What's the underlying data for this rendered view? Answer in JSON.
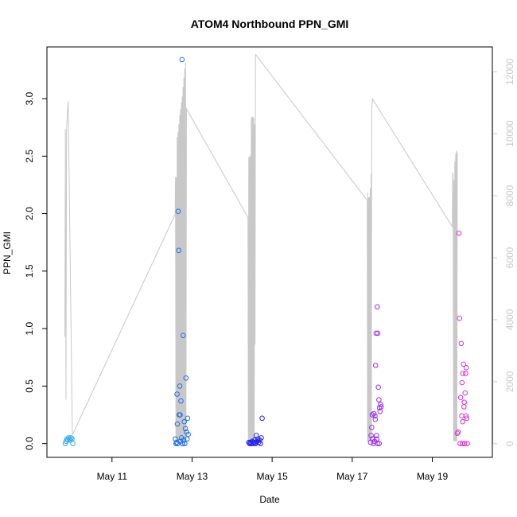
{
  "chart_data": {
    "type": "scatter",
    "title": "ATOM4 Northbound PPN_GMI",
    "xlabel": "Date",
    "ylabel": "PPN_GMI",
    "xlim": [
      "2023-05-09 09:00",
      "2023-05-20 12:00"
    ],
    "ylim": [
      -0.12,
      3.45
    ],
    "x_ticks": [
      {
        "date": "2023-05-11",
        "label": "May 11"
      },
      {
        "date": "2023-05-13",
        "label": "May 13"
      },
      {
        "date": "2023-05-15",
        "label": "May 15"
      },
      {
        "date": "2023-05-17",
        "label": "May 17"
      },
      {
        "date": "2023-05-19",
        "label": "May 19"
      }
    ],
    "y_ticks": [
      "0.0",
      "0.5",
      "1.0",
      "1.5",
      "2.0",
      "2.5",
      "3.0"
    ],
    "y_tick_values": [
      0.0,
      0.5,
      1.0,
      1.5,
      2.0,
      2.5,
      3.0
    ],
    "y2_ticks": [
      "0",
      "2000",
      "4000",
      "6000",
      "8000",
      "10000",
      "12000"
    ],
    "y2_tick_values": [
      0,
      2000,
      4000,
      6000,
      8000,
      10000,
      12000
    ],
    "y2_lim": [
      -440,
      12800
    ],
    "point_series": [
      {
        "color": "#35aaf0",
        "points": [
          [
            "2023-05-09 20:00",
            0.0
          ],
          [
            "2023-05-09 20:30",
            0.02
          ],
          [
            "2023-05-09 21:00",
            0.04
          ],
          [
            "2023-05-09 21:30",
            0.03
          ],
          [
            "2023-05-09 22:00",
            0.05
          ],
          [
            "2023-05-09 22:30",
            0.04
          ],
          [
            "2023-05-09 23:00",
            0.03
          ],
          [
            "2023-05-09 23:30",
            0.05
          ],
          [
            "2023-05-10 00:00",
            0.04
          ],
          [
            "2023-05-10 00:30",
            0.0
          ]
        ]
      },
      {
        "color": "#1e6ef0",
        "points": [
          [
            "2023-05-12 14:00",
            0.04
          ],
          [
            "2023-05-12 14:40",
            0.01
          ],
          [
            "2023-05-12 15:00",
            0.43
          ],
          [
            "2023-05-12 15:20",
            0.0
          ],
          [
            "2023-05-12 15:40",
            2.02
          ],
          [
            "2023-05-12 16:00",
            1.68
          ],
          [
            "2023-05-12 16:20",
            0.25
          ],
          [
            "2023-05-12 16:40",
            0.5
          ],
          [
            "2023-05-12 17:00",
            0.02
          ],
          [
            "2023-05-12 17:20",
            0.37
          ],
          [
            "2023-05-12 17:40",
            0.05
          ],
          [
            "2023-05-12 18:00",
            3.34
          ],
          [
            "2023-05-12 18:20",
            0.0
          ],
          [
            "2023-05-12 18:40",
            0.94
          ],
          [
            "2023-05-12 19:00",
            0.03
          ],
          [
            "2023-05-12 19:20",
            0.19
          ],
          [
            "2023-05-12 19:40",
            0.0
          ],
          [
            "2023-05-12 20:00",
            0.13
          ],
          [
            "2023-05-12 20:20",
            0.57
          ],
          [
            "2023-05-12 20:40",
            0.1
          ],
          [
            "2023-05-12 21:00",
            0.04
          ],
          [
            "2023-05-12 21:20",
            0.22
          ],
          [
            "2023-05-12 21:40",
            0.08
          ],
          [
            "2023-05-12 15:10",
            0.17
          ],
          [
            "2023-05-12 16:50",
            0.25
          ],
          [
            "2023-05-12 18:10",
            0.0
          ],
          [
            "2023-05-12 14:20",
            0.0
          ]
        ]
      },
      {
        "color": "#2020f0",
        "points": [
          [
            "2023-05-14 10:00",
            0.01
          ],
          [
            "2023-05-14 10:30",
            0.0
          ],
          [
            "2023-05-14 11:00",
            0.01
          ],
          [
            "2023-05-14 11:30",
            0.0
          ],
          [
            "2023-05-14 12:00",
            0.02
          ],
          [
            "2023-05-14 12:30",
            0.0
          ],
          [
            "2023-05-14 13:00",
            0.01
          ],
          [
            "2023-05-14 13:30",
            0.03
          ],
          [
            "2023-05-14 14:00",
            0.0
          ],
          [
            "2023-05-14 14:30",
            0.07
          ],
          [
            "2023-05-14 15:00",
            0.02
          ],
          [
            "2023-05-14 15:30",
            0.04
          ],
          [
            "2023-05-14 16:00",
            0.01
          ],
          [
            "2023-05-14 16:30",
            0.03
          ],
          [
            "2023-05-14 17:00",
            0.0
          ],
          [
            "2023-05-14 17:30",
            0.05
          ],
          [
            "2023-05-14 18:00",
            0.22
          ],
          [
            "2023-05-14 14:10",
            0.01
          ]
        ]
      },
      {
        "color": "#9a2cf0",
        "points": [
          [
            "2023-05-17 11:00",
            0.01
          ],
          [
            "2023-05-17 11:20",
            0.07
          ],
          [
            "2023-05-17 11:40",
            0.14
          ],
          [
            "2023-05-17 12:00",
            0.25
          ],
          [
            "2023-05-17 12:20",
            0.04
          ],
          [
            "2023-05-17 12:40",
            0.0
          ],
          [
            "2023-05-17 13:00",
            0.26
          ],
          [
            "2023-05-17 13:20",
            0.02
          ],
          [
            "2023-05-17 13:40",
            0.24
          ],
          [
            "2023-05-17 14:00",
            0.68
          ],
          [
            "2023-05-17 14:20",
            0.96
          ],
          [
            "2023-05-17 14:40",
            0.04
          ],
          [
            "2023-05-17 15:00",
            1.19
          ],
          [
            "2023-05-17 15:20",
            0.96
          ],
          [
            "2023-05-17 15:40",
            0.49
          ],
          [
            "2023-05-17 16:00",
            0.38
          ],
          [
            "2023-05-17 16:20",
            0.31
          ],
          [
            "2023-05-17 16:40",
            0.28
          ],
          [
            "2023-05-17 17:00",
            0.34
          ],
          [
            "2023-05-17 17:20",
            0.32
          ],
          [
            "2023-05-17 12:10",
            0.04
          ],
          [
            "2023-05-17 13:50",
            0.21
          ],
          [
            "2023-05-17 14:30",
            0.07
          ],
          [
            "2023-05-17 15:10",
            0.0
          ],
          [
            "2023-05-17 16:10",
            0.0
          ]
        ]
      },
      {
        "color": "#e030d8",
        "points": [
          [
            "2023-05-19 15:00",
            0.09
          ],
          [
            "2023-05-19 15:30",
            0.1
          ],
          [
            "2023-05-19 16:00",
            1.83
          ],
          [
            "2023-05-19 16:20",
            1.09
          ],
          [
            "2023-05-19 16:40",
            0.0
          ],
          [
            "2023-05-19 17:00",
            0.4
          ],
          [
            "2023-05-19 17:20",
            0.87
          ],
          [
            "2023-05-19 17:40",
            0.24
          ],
          [
            "2023-05-19 18:00",
            0.0
          ],
          [
            "2023-05-19 18:20",
            0.61
          ],
          [
            "2023-05-19 18:40",
            0.69
          ],
          [
            "2023-05-19 19:00",
            0.32
          ],
          [
            "2023-05-19 19:20",
            0.0
          ],
          [
            "2023-05-19 19:40",
            0.44
          ],
          [
            "2023-05-19 20:00",
            0.61
          ],
          [
            "2023-05-19 20:20",
            0.66
          ],
          [
            "2023-05-19 20:40",
            0.22
          ],
          [
            "2023-05-19 21:00",
            0.0
          ],
          [
            "2023-05-19 19:10",
            0.36
          ],
          [
            "2023-05-19 18:10",
            0.19
          ],
          [
            "2023-05-19 17:50",
            0.53
          ],
          [
            "2023-05-19 20:10",
            0.24
          ]
        ]
      }
    ],
    "secondary_series": {
      "color": "#c8c8c8",
      "axis": "right",
      "points": [
        [
          "2023-05-09 19:45",
          3450
        ],
        [
          "2023-05-09 20:05",
          10150
        ],
        [
          "2023-05-09 20:25",
          1420
        ],
        [
          "2023-05-09 20:45",
          10000
        ],
        [
          "2023-05-09 21:15",
          10700
        ],
        [
          "2023-05-09 21:45",
          11050
        ],
        [
          "2023-05-10 00:15",
          280
        ],
        [
          "2023-05-12 13:50",
          7400
        ],
        [
          "2023-05-12 14:05",
          8600
        ],
        [
          "2023-05-12 14:20",
          80
        ],
        [
          "2023-05-12 14:35",
          8600
        ],
        [
          "2023-05-12 14:50",
          80
        ],
        [
          "2023-05-12 15:05",
          9900
        ],
        [
          "2023-05-12 15:20",
          80
        ],
        [
          "2023-05-12 15:35",
          10050
        ],
        [
          "2023-05-12 15:50",
          80
        ],
        [
          "2023-05-12 16:05",
          10300
        ],
        [
          "2023-05-12 16:20",
          80
        ],
        [
          "2023-05-12 16:35",
          10600
        ],
        [
          "2023-05-12 16:50",
          80
        ],
        [
          "2023-05-12 17:05",
          10800
        ],
        [
          "2023-05-12 17:20",
          80
        ],
        [
          "2023-05-12 17:35",
          11000
        ],
        [
          "2023-05-12 17:50",
          80
        ],
        [
          "2023-05-12 18:05",
          11200
        ],
        [
          "2023-05-12 18:20",
          80
        ],
        [
          "2023-05-12 18:35",
          11500
        ],
        [
          "2023-05-12 18:50",
          80
        ],
        [
          "2023-05-12 19:05",
          11800
        ],
        [
          "2023-05-12 19:20",
          80
        ],
        [
          "2023-05-12 19:35",
          12100
        ],
        [
          "2023-05-12 19:50",
          80
        ],
        [
          "2023-05-12 20:05",
          12300
        ],
        [
          "2023-05-12 20:20",
          80
        ],
        [
          "2023-05-12 20:40",
          10800
        ],
        [
          "2023-05-14 09:30",
          7300
        ],
        [
          "2023-05-14 09:45",
          80
        ],
        [
          "2023-05-14 10:00",
          9250
        ],
        [
          "2023-05-14 10:15",
          80
        ],
        [
          "2023-05-14 10:30",
          9250
        ],
        [
          "2023-05-14 10:45",
          80
        ],
        [
          "2023-05-14 11:00",
          9300
        ],
        [
          "2023-05-14 11:15",
          80
        ],
        [
          "2023-05-14 11:30",
          10500
        ],
        [
          "2023-05-14 11:45",
          80
        ],
        [
          "2023-05-14 12:00",
          10550
        ],
        [
          "2023-05-14 12:15",
          80
        ],
        [
          "2023-05-14 12:30",
          10550
        ],
        [
          "2023-05-14 12:45",
          80
        ],
        [
          "2023-05-14 13:00",
          10500
        ],
        [
          "2023-05-14 13:15",
          80
        ],
        [
          "2023-05-14 13:30",
          10300
        ],
        [
          "2023-05-14 13:45",
          3200
        ],
        [
          "2023-05-14 14:00",
          12400
        ],
        [
          "2023-05-14 14:10",
          12550
        ],
        [
          "2023-05-17 09:00",
          7850
        ],
        [
          "2023-05-17 09:10",
          80
        ],
        [
          "2023-05-17 09:20",
          8100
        ],
        [
          "2023-05-17 09:35",
          80
        ],
        [
          "2023-05-17 09:50",
          7950
        ],
        [
          "2023-05-17 10:05",
          80
        ],
        [
          "2023-05-17 10:20",
          7950
        ],
        [
          "2023-05-17 10:35",
          80
        ],
        [
          "2023-05-17 10:50",
          8250
        ],
        [
          "2023-05-17 11:05",
          80
        ],
        [
          "2023-05-17 11:20",
          8700
        ],
        [
          "2023-05-17 11:30",
          80
        ],
        [
          "2023-05-17 11:40",
          10800
        ],
        [
          "2023-05-17 11:55",
          10900
        ],
        [
          "2023-05-17 12:10",
          11150
        ],
        [
          "2023-05-17 12:25",
          11100
        ],
        [
          "2023-05-19 12:00",
          7000
        ],
        [
          "2023-05-19 12:15",
          8750
        ],
        [
          "2023-05-19 12:30",
          8600
        ],
        [
          "2023-05-19 12:45",
          80
        ],
        [
          "2023-05-19 13:00",
          8500
        ],
        [
          "2023-05-19 13:15",
          80
        ],
        [
          "2023-05-19 13:30",
          9100
        ],
        [
          "2023-05-19 13:45",
          80
        ],
        [
          "2023-05-19 14:00",
          9350
        ],
        [
          "2023-05-19 14:15",
          80
        ],
        [
          "2023-05-19 14:30",
          9450
        ],
        [
          "2023-05-19 14:45",
          80
        ],
        [
          "2023-05-19 15:00",
          9400
        ]
      ]
    },
    "grid": false,
    "legend": "none"
  }
}
